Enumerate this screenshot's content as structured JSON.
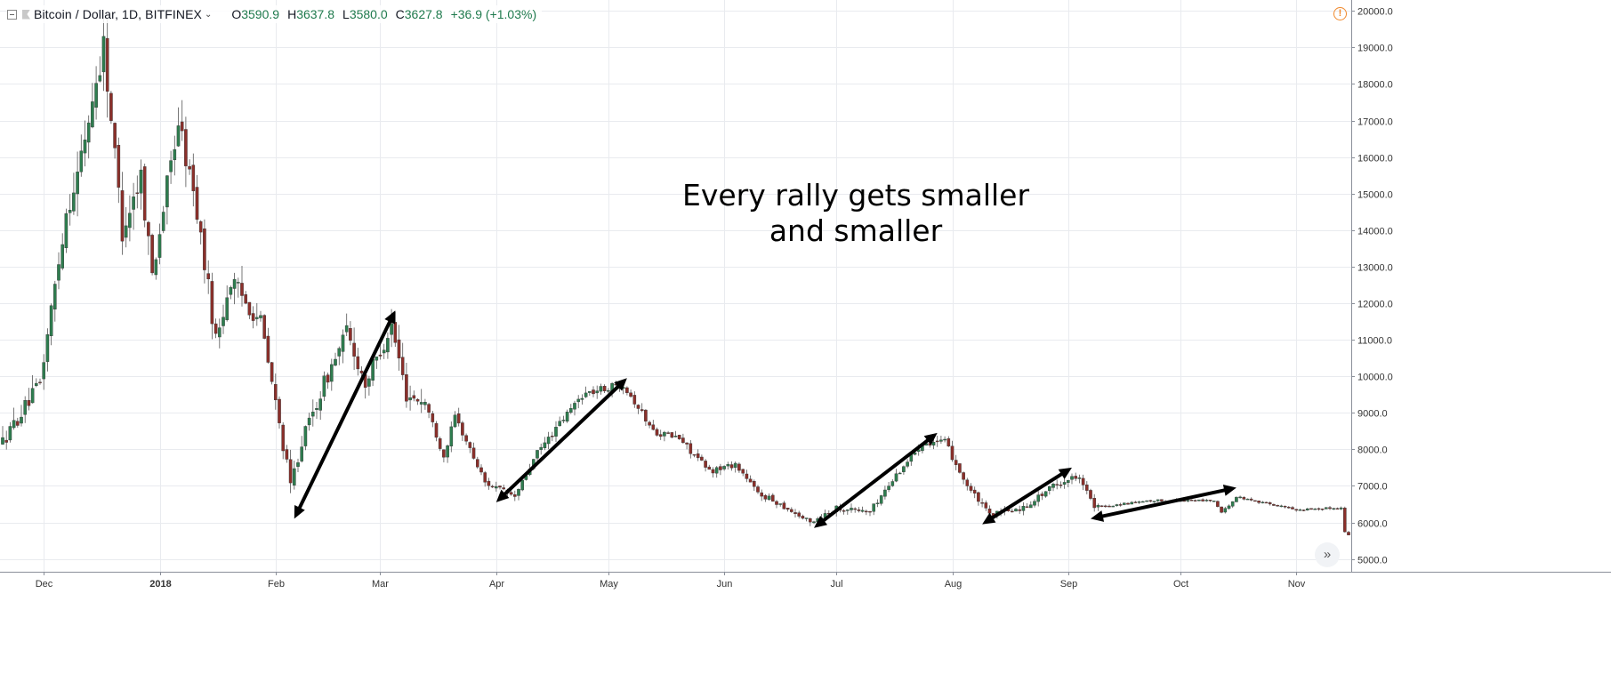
{
  "header": {
    "symbol": "Bitcoin / Dollar, 1D, BITFINEX",
    "ohlc": [
      {
        "label": "O",
        "value": "3590.9"
      },
      {
        "label": "H",
        "value": "3637.8"
      },
      {
        "label": "L",
        "value": "3580.0"
      },
      {
        "label": "C",
        "value": "3627.8"
      }
    ],
    "change": "+36.9 (+1.03%)",
    "alert_icon": "!",
    "collapse_icon": "minus-box-icon",
    "flag_icon": "flag-icon",
    "chevron_icon": "chevron-down-icon"
  },
  "annotation": {
    "line1": "Every rally gets smaller",
    "line2": "and smaller"
  },
  "scroll_button": {
    "icon": "»"
  },
  "colors": {
    "up": "#2e7d4f",
    "down": "#8b2f2a",
    "grid": "#e9ebef",
    "arrow": "#000000",
    "accent_green": "#1f7a4d"
  },
  "chart_data": {
    "type": "candlestick",
    "ylim": [
      4650,
      20300
    ],
    "y_ticks": [
      "5000.0",
      "6000.0",
      "7000.0",
      "8000.0",
      "9000.0",
      "10000.0",
      "11000.0",
      "12000.0",
      "13000.0",
      "14000.0",
      "15000.0",
      "16000.0",
      "17000.0",
      "18000.0",
      "19000.0",
      "20000.0"
    ],
    "x_ticks": [
      "Dec",
      "2018",
      "Feb",
      "Mar",
      "Apr",
      "May",
      "Jun",
      "Jul",
      "Aug",
      "Sep",
      "Oct",
      "Nov"
    ],
    "keypoints": [
      [
        "Nov 20 2017",
        8200
      ],
      [
        "Nov 30 2017",
        9800
      ],
      [
        "Dec 7 2017",
        14500
      ],
      [
        "Dec 10 2017",
        15500
      ],
      [
        "Dec 17 2017",
        19100
      ],
      [
        "Dec 22 2017",
        14000
      ],
      [
        "Dec 27 2017",
        15500
      ],
      [
        "Dec 30 2017",
        12800
      ],
      [
        "Jan 6 2018",
        17000
      ],
      [
        "Jan 11 2018",
        14500
      ],
      [
        "Jan 16 2018",
        11000
      ],
      [
        "Jan 20 2018",
        12600
      ],
      [
        "Jan 28 2018",
        11500
      ],
      [
        "Feb 5 2018",
        7000
      ],
      [
        "Feb 8 2018",
        8200
      ],
      [
        "Feb 14 2018",
        9800
      ],
      [
        "Feb 20 2018",
        11200
      ],
      [
        "Feb 25 2018",
        9800
      ],
      [
        "Mar 4 2018",
        11400
      ],
      [
        "Mar 8 2018",
        9500
      ],
      [
        "Mar 13 2018",
        9300
      ],
      [
        "Mar 18 2018",
        7800
      ],
      [
        "Mar 21 2018",
        8900
      ],
      [
        "Mar 29 2018",
        7100
      ],
      [
        "Apr 6 2018",
        6700
      ],
      [
        "Apr 12 2018",
        7900
      ],
      [
        "Apr 24 2018",
        9500
      ],
      [
        "May 5 2018",
        9800
      ],
      [
        "May 13 2018",
        8500
      ],
      [
        "May 20 2018",
        8300
      ],
      [
        "May 28 2018",
        7400
      ],
      [
        "Jun 4 2018",
        7600
      ],
      [
        "Jun 10 2018",
        6800
      ],
      [
        "Jun 16 2018",
        6500
      ],
      [
        "Jun 24 2018",
        6000
      ],
      [
        "Jul 1 2018",
        6400
      ],
      [
        "Jul 10 2018",
        6300
      ],
      [
        "Jul 17 2018",
        7300
      ],
      [
        "Jul 24 2018",
        8200
      ],
      [
        "Jul 30 2018",
        8200
      ],
      [
        "Aug 5 2018",
        7000
      ],
      [
        "Aug 11 2018",
        6200
      ],
      [
        "Aug 20 2018",
        6400
      ],
      [
        "Aug 28 2018",
        7000
      ],
      [
        "Sep 4 2018",
        7300
      ],
      [
        "Sep 8 2018",
        6400
      ],
      [
        "Sep 15 2018",
        6500
      ],
      [
        "Sep 25 2018",
        6600
      ],
      [
        "Oct 10 2018",
        6600
      ],
      [
        "Oct 12 2018",
        6250
      ],
      [
        "Oct 16 2018",
        6700
      ],
      [
        "Nov 1 2018",
        6350
      ],
      [
        "Nov 13 2018",
        6400
      ],
      [
        "Nov 14 2018",
        5750
      ],
      [
        "Nov 15 2018",
        5650
      ]
    ],
    "arrows": [
      {
        "from": [
          "Feb 6 2018",
          6100
        ],
        "to": [
          "Mar 5 2018",
          11800
        ]
      },
      {
        "from": [
          "Apr 1 2018",
          6550
        ],
        "to": [
          "May 6 2018",
          9950
        ]
      },
      {
        "from": [
          "Jun 25 2018",
          5850
        ],
        "to": [
          "Jul 28 2018",
          8450
        ]
      },
      {
        "from": [
          "Aug 9 2018",
          5950
        ],
        "to": [
          "Sep 2 2018",
          7500
        ]
      },
      {
        "from": [
          "Sep 7 2018",
          6100
        ],
        "to": [
          "Oct 16 2018",
          6950
        ]
      }
    ]
  }
}
